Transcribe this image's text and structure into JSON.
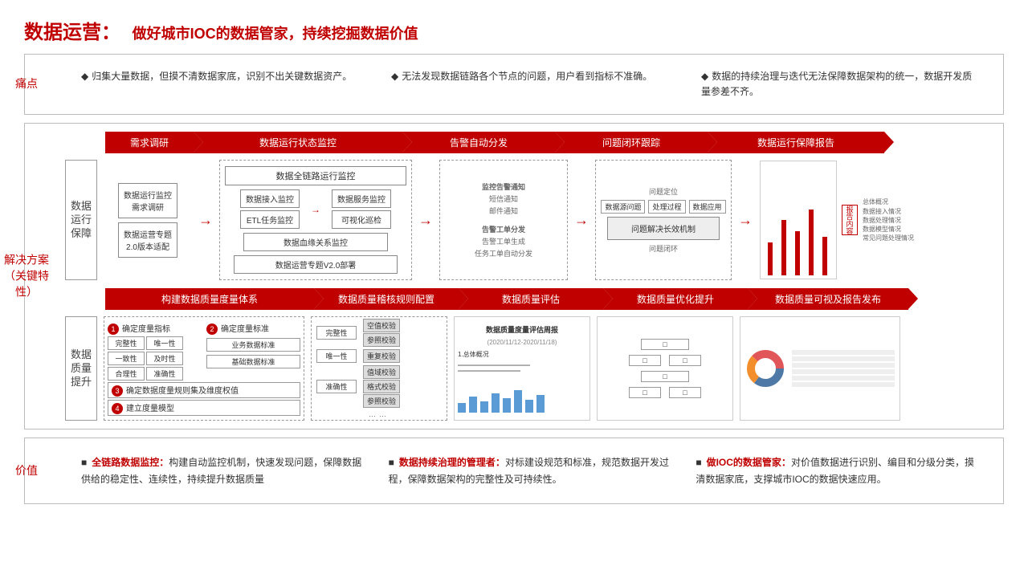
{
  "title_main": "数据运营：",
  "title_sub": "做好城市IOC的数据管家，持续挖掘数据价值",
  "pain_label": "痛点",
  "pain_points": [
    "归集大量数据，但摸不清数据家底，识别不出关键数据资产。",
    "无法发现数据链路各个节点的问题，用户看到指标不准确。",
    "数据的持续治理与迭代无法保障数据架构的统一，数据开发质量参差不齐。"
  ],
  "solution_label": "解决方案\n（关键特性）",
  "value_label": "价值",
  "track1": {
    "steps": [
      "需求调研",
      "数据运行状态监控",
      "告警自动分发",
      "问题闭环跟踪",
      "数据运行保障报告"
    ],
    "widths": [
      110,
      260,
      190,
      190,
      220
    ],
    "vlabel": "数据\n运行\n保障",
    "col1": {
      "b1": "数据运行监控\n需求调研",
      "b2": "数据运营专题\n2.0版本适配"
    },
    "col2": {
      "title": "数据全链路运行监控",
      "l1": "数据接入监控",
      "r1": "数据服务监控",
      "l2": "ETL任务监控",
      "r2": "可视化巡检",
      "mid": "数据血缘关系监控",
      "bottom": "数据运营专题V2.0部署"
    },
    "col3": {
      "t": "监控告警通知",
      "a": "短信通知",
      "b": "邮件通知",
      "t2": "告警工单分发",
      "c": "告警工单生成",
      "d": "任务工单自动分发"
    },
    "col4": {
      "t": "问题定位",
      "b1": "数据源问题",
      "b2": "处理过程",
      "b3": "数据应用",
      "mid": "问题解决长效机制",
      "bot": "问题闭环"
    },
    "col5": {
      "side": "报告内容",
      "items": [
        "总体概况",
        "数据接入情况",
        "数据处理情况",
        "数据模型情况",
        "常见问题处理情况"
      ]
    }
  },
  "track2": {
    "steps": [
      "构建数据质量度量体系",
      "数据质量稽核规则配置",
      "数据质量评估",
      "数据质量优化提升",
      "数据质量可视及报告发布"
    ],
    "widths": [
      260,
      180,
      180,
      180,
      200
    ],
    "vlabel": "数据\n质量\n提升",
    "col1": {
      "h1": "确定度量指标",
      "h2": "确定度量标准",
      "metrics": [
        "完整性",
        "唯一性",
        "一致性",
        "及时性",
        "合理性",
        "准确性"
      ],
      "std1": "业务数据标准",
      "std2": "基础数据标准",
      "h3": "确定数据度量规则集及维度权值",
      "h4": "建立度量模型"
    },
    "col2": {
      "rows": [
        {
          "l": "完整性",
          "r": [
            "空值校验",
            "参照校验"
          ]
        },
        {
          "l": "唯一性",
          "r": [
            "重复校验"
          ]
        },
        {
          "l": "准确性",
          "r": [
            "值域校验",
            "格式校验",
            "参照校验"
          ]
        }
      ]
    },
    "col3": {
      "title": "数据质量度量评估周报",
      "sub": "(2020/11/12-2020/11/18)",
      "h": "1.总体概况",
      "bars": [
        30,
        50,
        35,
        60,
        45,
        70,
        40,
        55
      ]
    },
    "col5": {
      "donut_colors": [
        "#4e79a7",
        "#f28e2b",
        "#e15759"
      ]
    }
  },
  "values": [
    {
      "lead": "全链路数据监控：",
      "text": "构建自动监控机制，快速发现问题，保障数据供给的稳定性、连续性，持续提升数据质量"
    },
    {
      "lead": "数据持续治理的管理者：",
      "text": "对标建设规范和标准，规范数据开发过程，保障数据架构的完整性及可持续性。"
    },
    {
      "lead": "做IOC的数据管家：",
      "text": "对价值数据进行识别、编目和分级分类，摸清数据家底，支撑城市IOC的数据快速应用。"
    }
  ],
  "colors": {
    "accent": "#c00000",
    "border": "#999"
  }
}
